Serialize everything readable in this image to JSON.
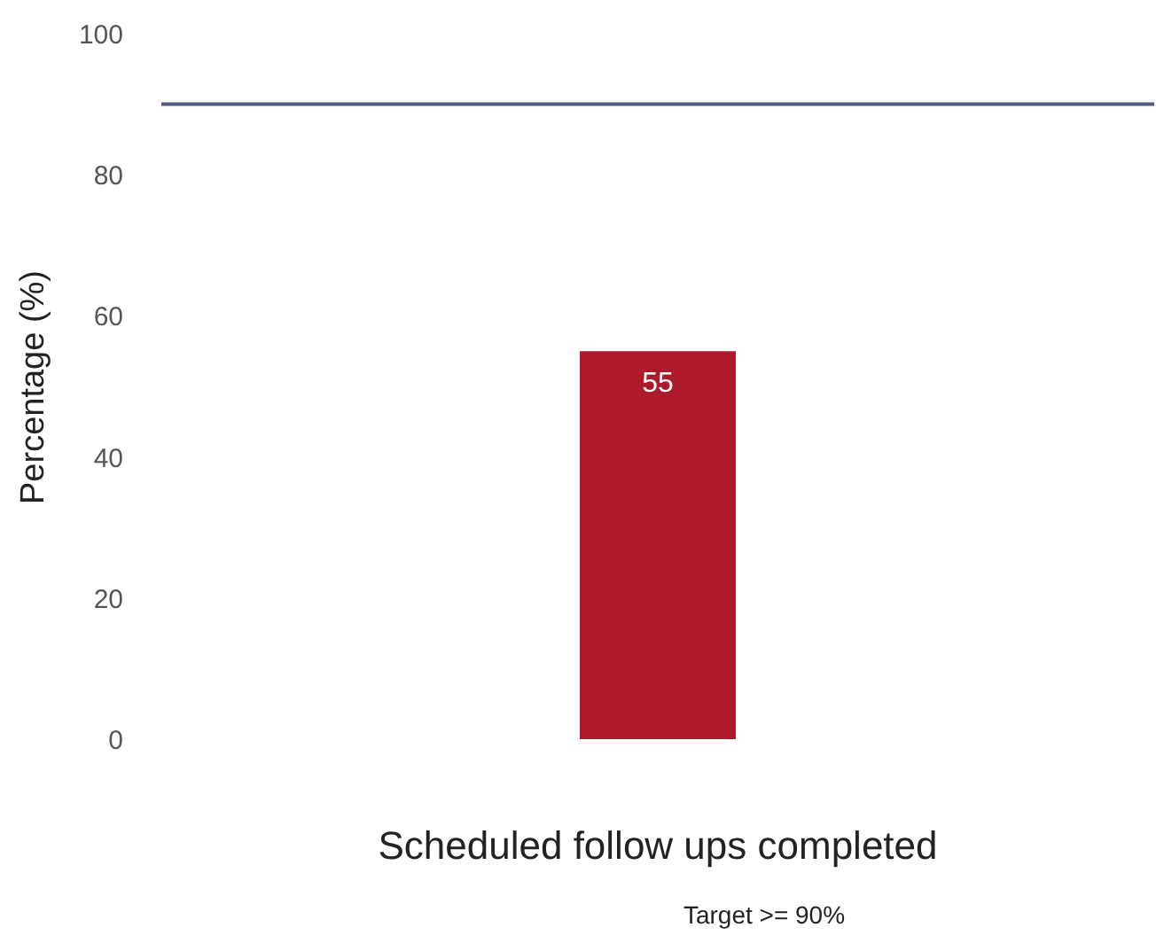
{
  "chart_data": {
    "type": "bar",
    "ylabel": "Percentage (%)",
    "categories": [
      "Scheduled follow ups completed"
    ],
    "values": [
      55
    ],
    "color": "#ae1a2b",
    "data_labels": true,
    "ylim": [
      0,
      100
    ],
    "yticks": [
      0,
      20,
      40,
      60,
      80,
      100
    ],
    "grid": false,
    "ref_lines": [
      {
        "axis": "y",
        "value": 90,
        "label": null,
        "color": "#4f5b7f"
      }
    ],
    "annotations": [
      "Target >= 90%"
    ]
  }
}
